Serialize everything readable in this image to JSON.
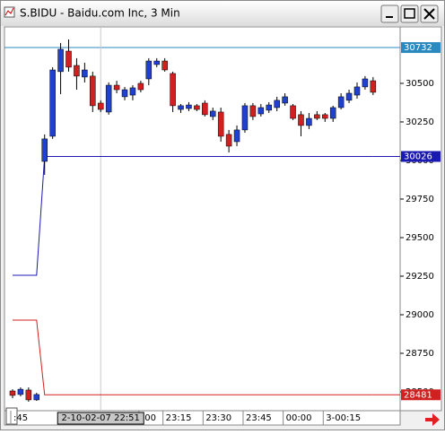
{
  "chart_data": {
    "type": "candlestick",
    "title": "S.BIDU - Baidu.com Inc, 3 Min",
    "up_color": "#2040d0",
    "down_color": "#d02020",
    "open": [
      28506,
      28483,
      28512,
      28448,
      29994,
      30157,
      30576,
      30709,
      30616,
      30541,
      30547,
      30372,
      30314,
      30488,
      30413,
      30424,
      30500,
      30529,
      30622,
      30645,
      30564,
      30331,
      30337,
      30355,
      30372,
      30285,
      30314,
      30169,
      30122,
      30198,
      30355,
      30302,
      30326,
      30343,
      30372,
      30355,
      30297,
      30227,
      30297,
      30297,
      30273,
      30343,
      30390,
      30424,
      30477,
      30517
    ],
    "high": [
      28517,
      28529,
      28529,
      28494,
      30169,
      30605,
      30762,
      30785,
      30663,
      30634,
      30576,
      30390,
      30506,
      30517,
      30477,
      30488,
      30517,
      30663,
      30663,
      30663,
      30576,
      30366,
      30378,
      30366,
      30390,
      30343,
      30343,
      30198,
      30227,
      30372,
      30372,
      30366,
      30378,
      30413,
      30436,
      30366,
      30320,
      30308,
      30320,
      30308,
      30355,
      30436,
      30459,
      30506,
      30547,
      30541
    ],
    "low": [
      28459,
      28471,
      28436,
      28442,
      29907,
      30140,
      30430,
      30576,
      30459,
      30506,
      30314,
      30314,
      30297,
      30436,
      30390,
      30390,
      30442,
      30488,
      30605,
      30576,
      30314,
      30308,
      30320,
      30320,
      30285,
      30262,
      30122,
      30052,
      30093,
      30180,
      30262,
      30285,
      30308,
      30320,
      30355,
      30262,
      30157,
      30203,
      30262,
      30250,
      30250,
      30331,
      30372,
      30401,
      30459,
      30424
    ],
    "close": [
      28477,
      28517,
      28448,
      28483,
      30140,
      30587,
      30721,
      30605,
      30547,
      30587,
      30355,
      30331,
      30488,
      30459,
      30459,
      30471,
      30459,
      30645,
      30645,
      30587,
      30355,
      30355,
      30360,
      30331,
      30297,
      30320,
      30157,
      30093,
      30198,
      30355,
      30285,
      30343,
      30360,
      30390,
      30413,
      30273,
      30227,
      30273,
      30273,
      30273,
      30343,
      30413,
      30436,
      30477,
      30529,
      30442
    ],
    "series": [
      {
        "color": "#1a1ab0",
        "values": [
          29256,
          29256,
          29256,
          29256,
          30026,
          30026,
          30026,
          30026,
          30026,
          30026,
          30026,
          30026,
          30026,
          30026,
          30026,
          30026,
          30026,
          30026,
          30026,
          30026,
          30026,
          30026,
          30026,
          30026,
          30026,
          30026,
          30026,
          30026,
          30026,
          30026,
          30026,
          30026,
          30026,
          30026,
          30026,
          30026,
          30026,
          30026,
          30026,
          30026,
          30026,
          30026,
          30026,
          30026,
          30026,
          30026
        ]
      },
      {
        "color": "#d02020",
        "values": [
          28965,
          28965,
          28965,
          28965,
          28481,
          28481,
          28481,
          28481,
          28481,
          28481,
          28481,
          28481,
          28481,
          28481,
          28481,
          28481,
          28481,
          28481,
          28481,
          28481,
          28481,
          28481,
          28481,
          28481,
          28481,
          28481,
          28481,
          28481,
          28481,
          28481,
          28481,
          28481,
          28481,
          28481,
          28481,
          28481,
          28481,
          28481,
          28481,
          28481,
          28481,
          28481,
          28481,
          28481,
          28481,
          28481
        ]
      }
    ],
    "hlines": [
      {
        "value": 30732,
        "color": "#2a8ac0"
      }
    ],
    "ylim": [
      28378,
      30866
    ],
    "yticks": [
      28500,
      28750,
      29000,
      29250,
      29500,
      29750,
      30000,
      30250,
      30500
    ],
    "xticks": [
      {
        "value": 0,
        "label": ":45"
      },
      {
        "value": 16,
        "label": ":00"
      },
      {
        "value": 19,
        "label": "23:15"
      },
      {
        "value": 24,
        "label": "23:30"
      },
      {
        "value": 29,
        "label": "23:45"
      },
      {
        "value": 34,
        "label": "00:00"
      },
      {
        "value": 39,
        "label": "3-00:15"
      }
    ],
    "cursor": {
      "value": 11,
      "label": "2-10-02-07 22:51"
    }
  }
}
